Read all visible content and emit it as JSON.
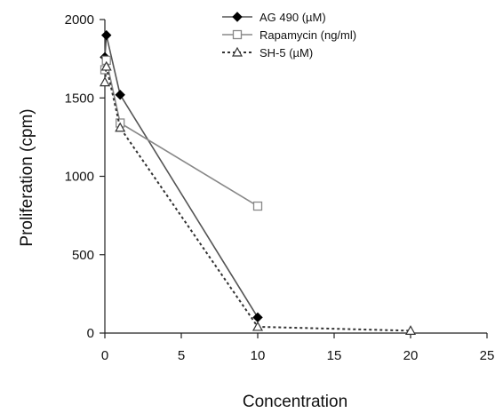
{
  "chart_data": {
    "type": "line",
    "xlabel": "Concentration",
    "ylabel": "Proliferation (cpm)",
    "xlim": [
      0,
      25
    ],
    "ylim": [
      0,
      2000
    ],
    "xticks": [
      0,
      5,
      10,
      15,
      20,
      25
    ],
    "yticks": [
      0,
      500,
      1000,
      1500,
      2000
    ],
    "grid": false,
    "legend_position": "top-right",
    "series": [
      {
        "name": "AG 490 (µM)",
        "marker": "filled-diamond",
        "line": "solid",
        "color": "#555555",
        "x": [
          0,
          0.1,
          1,
          10
        ],
        "y": [
          1760,
          1900,
          1520,
          100
        ]
      },
      {
        "name": "Rapamycin (ng/ml)",
        "marker": "open-square",
        "line": "solid",
        "color": "#888888",
        "x": [
          0,
          0.1,
          1,
          10
        ],
        "y": [
          1680,
          1740,
          1340,
          810
        ]
      },
      {
        "name": "SH-5 (µM)",
        "marker": "open-triangle",
        "line": "dotted",
        "color": "#333333",
        "x": [
          0,
          0.1,
          1,
          10,
          20
        ],
        "y": [
          1600,
          1700,
          1310,
          40,
          15
        ]
      }
    ]
  }
}
